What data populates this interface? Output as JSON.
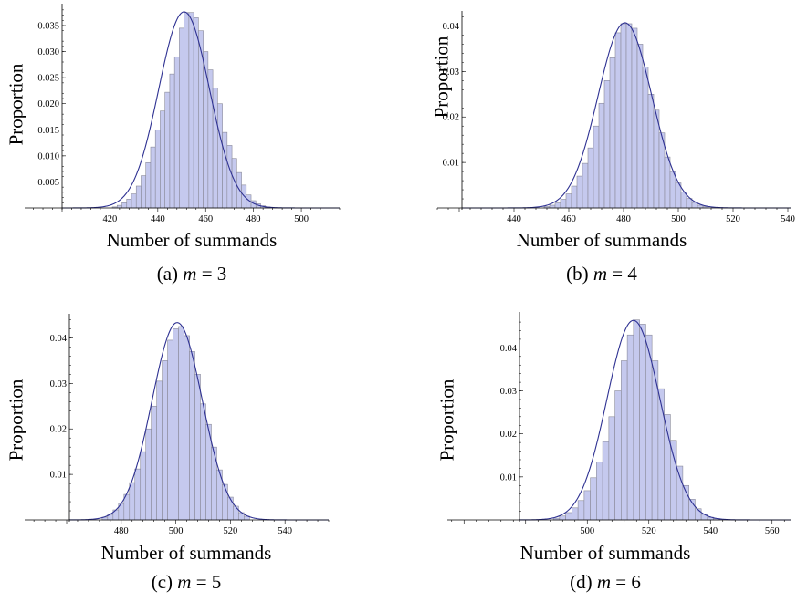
{
  "colors": {
    "bar_fill": "#c5c9ee",
    "bar_stroke": "#8a8a9a",
    "curve": "#2e3192",
    "axis": "#000000"
  },
  "chart_data": [
    {
      "type": "bar",
      "panel_label": "(a)",
      "m_value": "3",
      "xlabel": "Number of summands",
      "ylabel": "Proportion",
      "xlim": [
        400,
        516
      ],
      "ylim": [
        0,
        0.0385
      ],
      "xticks": [
        "420",
        "440",
        "460",
        "480",
        "500"
      ],
      "yticks": [
        "0.005",
        "0.010",
        "0.015",
        "0.020",
        "0.025",
        "0.030",
        "0.035"
      ],
      "fit": {
        "mean": 451,
        "sd": 10.6
      },
      "bin_width": 2,
      "bins": [
        [
          422,
          0.0002
        ],
        [
          424,
          0.0005
        ],
        [
          426,
          0.001
        ],
        [
          428,
          0.0017
        ],
        [
          430,
          0.0027
        ],
        [
          432,
          0.0042
        ],
        [
          434,
          0.0062
        ],
        [
          436,
          0.0087
        ],
        [
          438,
          0.0117
        ],
        [
          440,
          0.015
        ],
        [
          442,
          0.0186
        ],
        [
          444,
          0.0222
        ],
        [
          446,
          0.0257
        ],
        [
          448,
          0.029
        ],
        [
          450,
          0.0345
        ],
        [
          452,
          0.0375
        ],
        [
          454,
          0.0375
        ],
        [
          456,
          0.0365
        ],
        [
          458,
          0.034
        ],
        [
          460,
          0.03
        ],
        [
          462,
          0.0265
        ],
        [
          464,
          0.023
        ],
        [
          466,
          0.02
        ],
        [
          468,
          0.0145
        ],
        [
          470,
          0.012
        ],
        [
          472,
          0.0095
        ],
        [
          474,
          0.0068
        ],
        [
          476,
          0.0044
        ],
        [
          478,
          0.0025
        ],
        [
          480,
          0.0014
        ],
        [
          482,
          0.0008
        ],
        [
          484,
          0.0004
        ],
        [
          486,
          0.0002
        ]
      ]
    },
    {
      "type": "bar",
      "panel_label": "(b)",
      "m_value": "4",
      "xlabel": "Number of summands",
      "ylabel": "Proportion",
      "xlim": [
        421,
        541
      ],
      "ylim": [
        0,
        0.0425
      ],
      "xticks": [
        "440",
        "460",
        "480",
        "500",
        "520",
        "540"
      ],
      "yticks": [
        "0.01",
        "0.02",
        "0.03",
        "0.04"
      ],
      "fit": {
        "mean": 480.5,
        "sd": 9.8
      },
      "bin_width": 2,
      "bins": [
        [
          452,
          0.0003
        ],
        [
          454,
          0.0006
        ],
        [
          456,
          0.0011
        ],
        [
          458,
          0.0019
        ],
        [
          460,
          0.0031
        ],
        [
          462,
          0.0048
        ],
        [
          464,
          0.007
        ],
        [
          466,
          0.0098
        ],
        [
          468,
          0.0132
        ],
        [
          470,
          0.018
        ],
        [
          472,
          0.023
        ],
        [
          474,
          0.028
        ],
        [
          476,
          0.033
        ],
        [
          478,
          0.0385
        ],
        [
          480,
          0.0405
        ],
        [
          482,
          0.0405
        ],
        [
          484,
          0.0395
        ],
        [
          486,
          0.036
        ],
        [
          488,
          0.031
        ],
        [
          490,
          0.025
        ],
        [
          492,
          0.0215
        ],
        [
          494,
          0.0165
        ],
        [
          496,
          0.0112
        ],
        [
          498,
          0.008
        ],
        [
          500,
          0.0055
        ],
        [
          502,
          0.0035
        ],
        [
          504,
          0.0021
        ],
        [
          506,
          0.0012
        ],
        [
          508,
          0.0006
        ],
        [
          510,
          0.0003
        ]
      ]
    },
    {
      "type": "bar",
      "panel_label": "(c)",
      "m_value": "5",
      "xlabel": "Number of summands",
      "ylabel": "Proportion",
      "xlim": [
        461,
        556
      ],
      "ylim": [
        0,
        0.0445
      ],
      "xticks": [
        "480",
        "500",
        "520",
        "540"
      ],
      "yticks": [
        "0.01",
        "0.02",
        "0.03",
        "0.04"
      ],
      "fit": {
        "mean": 500.5,
        "sd": 9.2
      },
      "bin_width": 2,
      "bins": [
        [
          474,
          0.0006
        ],
        [
          476,
          0.0012
        ],
        [
          478,
          0.0022
        ],
        [
          480,
          0.0036
        ],
        [
          482,
          0.0056
        ],
        [
          484,
          0.0082
        ],
        [
          486,
          0.0112
        ],
        [
          488,
          0.015
        ],
        [
          490,
          0.02
        ],
        [
          492,
          0.025
        ],
        [
          494,
          0.0305
        ],
        [
          496,
          0.035
        ],
        [
          498,
          0.0395
        ],
        [
          500,
          0.042
        ],
        [
          502,
          0.0425
        ],
        [
          504,
          0.0405
        ],
        [
          506,
          0.037
        ],
        [
          508,
          0.032
        ],
        [
          510,
          0.0255
        ],
        [
          512,
          0.021
        ],
        [
          514,
          0.016
        ],
        [
          516,
          0.011
        ],
        [
          518,
          0.0078
        ],
        [
          520,
          0.005
        ],
        [
          522,
          0.003
        ],
        [
          524,
          0.0016
        ],
        [
          526,
          0.0008
        ]
      ]
    },
    {
      "type": "bar",
      "panel_label": "(d)",
      "m_value": "6",
      "xlabel": "Number of summands",
      "ylabel": "Proportion",
      "xlim": [
        478,
        566
      ],
      "ylim": [
        0,
        0.0475
      ],
      "xticks": [
        "500",
        "520",
        "540",
        "560"
      ],
      "yticks": [
        "0.01",
        "0.02",
        "0.03",
        "0.04"
      ],
      "fit": {
        "mean": 515,
        "sd": 8.6
      },
      "bin_width": 2,
      "bins": [
        [
          490,
          0.0004
        ],
        [
          492,
          0.0009
        ],
        [
          494,
          0.0017
        ],
        [
          496,
          0.0028
        ],
        [
          498,
          0.0045
        ],
        [
          500,
          0.0068
        ],
        [
          502,
          0.0098
        ],
        [
          504,
          0.0135
        ],
        [
          506,
          0.0182
        ],
        [
          508,
          0.024
        ],
        [
          510,
          0.03
        ],
        [
          512,
          0.037
        ],
        [
          514,
          0.043
        ],
        [
          516,
          0.0465
        ],
        [
          518,
          0.0455
        ],
        [
          520,
          0.043
        ],
        [
          522,
          0.037
        ],
        [
          524,
          0.0305
        ],
        [
          526,
          0.0245
        ],
        [
          528,
          0.0185
        ],
        [
          530,
          0.0125
        ],
        [
          532,
          0.008
        ],
        [
          534,
          0.0048
        ],
        [
          536,
          0.0026
        ],
        [
          538,
          0.0013
        ],
        [
          540,
          0.0006
        ],
        [
          542,
          0.0003
        ]
      ]
    }
  ]
}
